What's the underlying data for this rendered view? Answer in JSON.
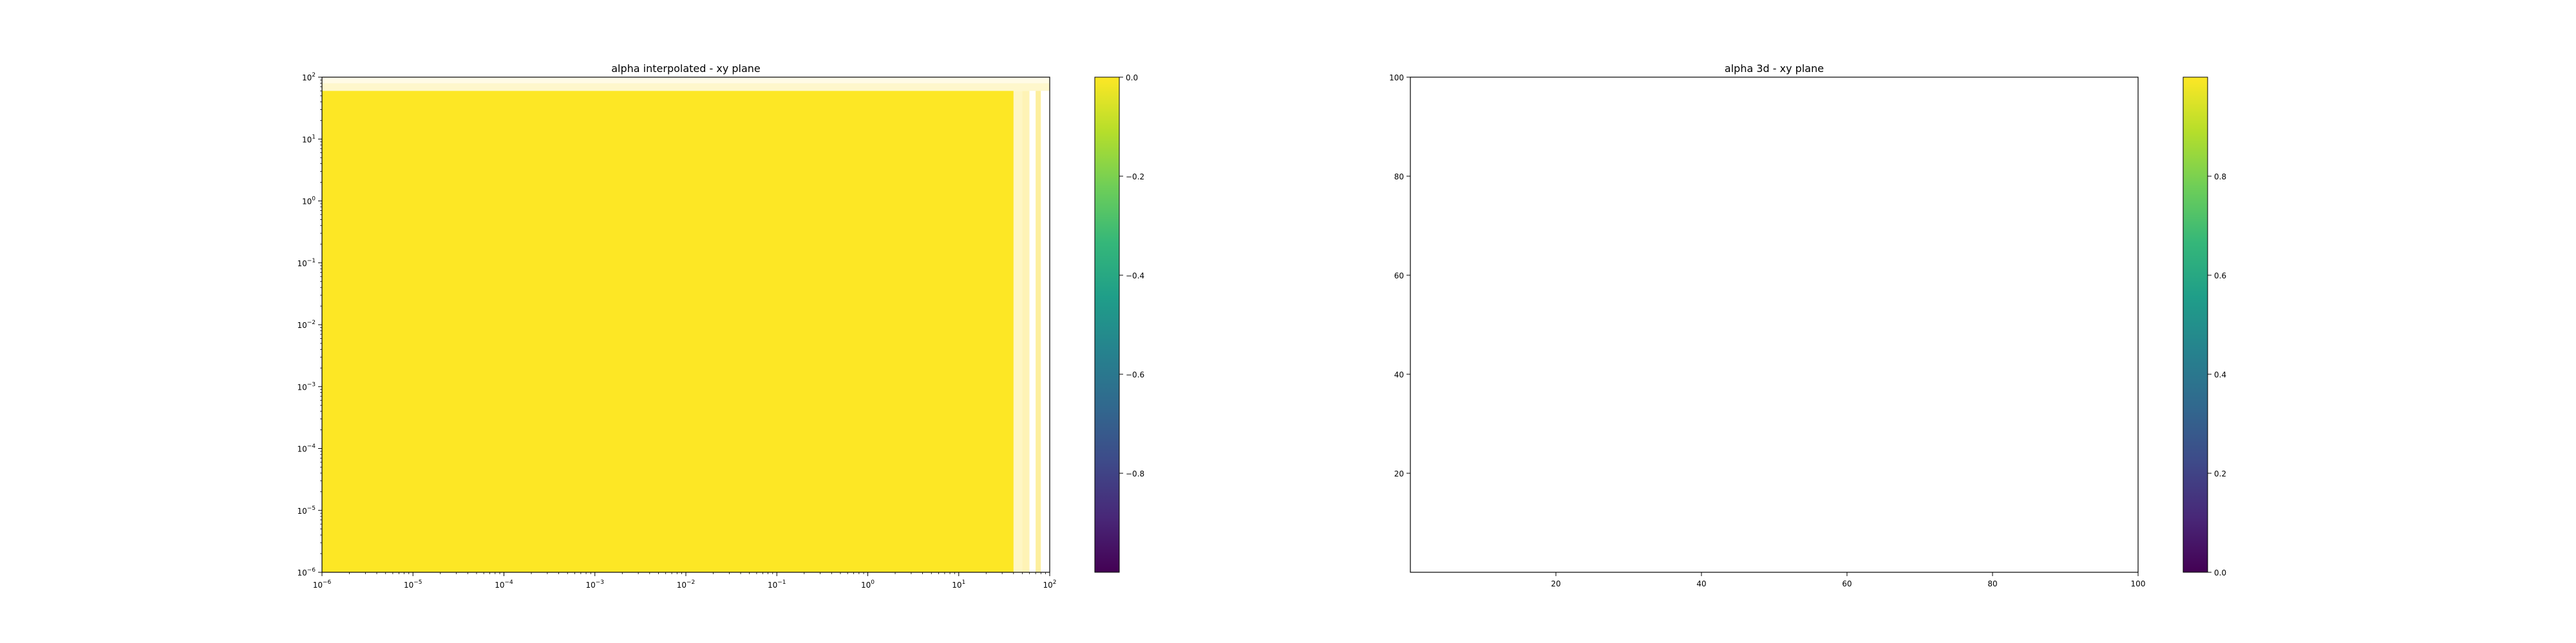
{
  "chart_data": [
    {
      "type": "heatmap",
      "title": "alpha interpolated - xy plane",
      "x_scale": "log",
      "y_scale": "log",
      "xlim": [
        1e-06,
        100
      ],
      "ylim": [
        1e-06,
        100
      ],
      "x_ticks": [
        {
          "base": "10",
          "exp": "−6"
        },
        {
          "base": "10",
          "exp": "−5"
        },
        {
          "base": "10",
          "exp": "−4"
        },
        {
          "base": "10",
          "exp": "−3"
        },
        {
          "base": "10",
          "exp": "−2"
        },
        {
          "base": "10",
          "exp": "−1"
        },
        {
          "base": "10",
          "exp": "0"
        },
        {
          "base": "10",
          "exp": "1"
        },
        {
          "base": "10",
          "exp": "2"
        }
      ],
      "y_ticks": [
        {
          "base": "10",
          "exp": "−6"
        },
        {
          "base": "10",
          "exp": "−5"
        },
        {
          "base": "10",
          "exp": "−4"
        },
        {
          "base": "10",
          "exp": "−3"
        },
        {
          "base": "10",
          "exp": "−2"
        },
        {
          "base": "10",
          "exp": "−1"
        },
        {
          "base": "10",
          "exp": "0"
        },
        {
          "base": "10",
          "exp": "1"
        },
        {
          "base": "10",
          "exp": "2"
        }
      ],
      "fill_value": 0.0,
      "fill_color": "#fde725",
      "fill_extent": {
        "x_max": 40,
        "y_max": 60
      },
      "edge_bands": [
        {
          "x_from": 40,
          "x_to": 50,
          "color": "#fef6c4"
        },
        {
          "x_from": 50,
          "x_to": 60,
          "color": "#fef3b6"
        },
        {
          "x_from": 60,
          "x_to": 70,
          "color": "#ffffff"
        },
        {
          "x_from": 70,
          "x_to": 80,
          "color": "#fdef9e"
        },
        {
          "x_from": 80,
          "x_to": 100,
          "color": "#ffffff"
        }
      ],
      "top_bands": [
        {
          "y_from": 60,
          "y_to": 80,
          "color": "#fef7cc"
        },
        {
          "y_from": 80,
          "y_to": 100,
          "color": "#fffbe6"
        }
      ],
      "colorbar": {
        "range": [
          -1.0,
          0.0
        ],
        "ticks": [
          {
            "value": 0.0,
            "label": "0.0"
          },
          {
            "value": -0.2,
            "label": "−0.2"
          },
          {
            "value": -0.4,
            "label": "−0.4"
          },
          {
            "value": -0.6,
            "label": "−0.6"
          },
          {
            "value": -0.8,
            "label": "−0.8"
          }
        ]
      }
    },
    {
      "type": "heatmap",
      "title": "alpha 3d - xy plane",
      "x_scale": "linear",
      "y_scale": "linear",
      "xlim": [
        0,
        100
      ],
      "ylim": [
        0,
        100
      ],
      "x_ticks": [
        "20",
        "40",
        "60",
        "80",
        "100"
      ],
      "x_tick_values": [
        20,
        40,
        60,
        80,
        100
      ],
      "y_ticks": [
        "20",
        "40",
        "60",
        "80",
        "100"
      ],
      "y_tick_values": [
        20,
        40,
        60,
        80,
        100
      ],
      "colorbar": {
        "range": [
          0.0,
          1.0
        ],
        "ticks": [
          {
            "value": 0.0,
            "label": "0.0"
          },
          {
            "value": 0.2,
            "label": "0.2"
          },
          {
            "value": 0.4,
            "label": "0.4"
          },
          {
            "value": 0.6,
            "label": "0.6"
          },
          {
            "value": 0.8,
            "label": "0.8"
          }
        ]
      }
    }
  ],
  "colormap_stops": [
    "#440154",
    "#482878",
    "#3e4a89",
    "#31688e",
    "#26828e",
    "#1f9e89",
    "#35b779",
    "#6ece58",
    "#b5de2b",
    "#fde725"
  ]
}
